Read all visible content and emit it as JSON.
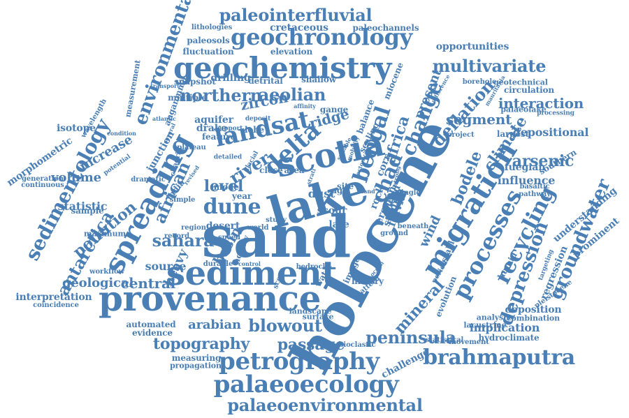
{
  "cloud": {
    "color": "#4a7fb5",
    "words": [
      "sand",
      "holocene",
      "lake",
      "provenance",
      "sediment",
      "scotia",
      "geochemistry",
      "spreading",
      "migration",
      "petrography",
      "palaeoecology",
      "delta",
      "landsat",
      "geochronology",
      "processes",
      "dune",
      "bengal",
      "recycling",
      "brahmaputra",
      "palaeoenvironmental",
      "sedimentology",
      "groundwater",
      "paleointerfluvial",
      "multivariate",
      "african",
      "northern",
      "aeolian",
      "topography",
      "blowout",
      "peninsula",
      "passage",
      "depression",
      "chad",
      "change",
      "deflation",
      "africa",
      "environmental",
      "segment",
      "interaction",
      "zircon",
      "antarctica",
      "river",
      "level",
      "sahara",
      "basin",
      "arabian",
      "mineral",
      "central",
      "pollution",
      "wind",
      "arsenic",
      "bodele",
      "climate",
      "ridge",
      "volume",
      "increase",
      "implication",
      "influence",
      "fluvial",
      "rock",
      "cretaceous",
      "paleochannels",
      "opportunities",
      "elevation",
      "fluctuation",
      "paleosols",
      "lithologies",
      "heavy",
      "source",
      "statistic",
      "morphometric",
      "isotope",
      "junction",
      "anganmma",
      "measurement",
      "fuegian",
      "depositional",
      "largest",
      "understanding",
      "prominent",
      "regression",
      "deposition",
      "geological",
      "interpretation",
      "coincidence",
      "workflow",
      "automated",
      "evidence",
      "measuring",
      "propagation",
      "challenge",
      "analysis",
      "lacustrine",
      "surface",
      "landscape",
      "bioclastic",
      "statistical",
      "movement",
      "hydroclimate",
      "combination",
      "mauritania",
      "circulation",
      "palaeolake",
      "geotechnical",
      "borehole",
      "difference",
      "miocene",
      "present",
      "stable",
      "period",
      "evolution",
      "humid",
      "targeting",
      "pleistocene",
      "southern",
      "processing",
      "project",
      "basaltic",
      "pathway",
      "drilling",
      "detrital",
      "shallow",
      "snapshot",
      "multiple",
      "aquifer",
      "drake",
      "feature",
      "gange",
      "lobe",
      "model",
      "year",
      "dust",
      "scour",
      "late",
      "desert",
      "india",
      "chadrill",
      "record",
      "region",
      "maximum",
      "sample",
      "generation",
      "continuous",
      "wavelength",
      "plateau",
      "support",
      "deposit",
      "affinity",
      "transport",
      "condition",
      "potential",
      "dramatic",
      "simple",
      "durable",
      "speed",
      "hollow",
      "control",
      "bedrock",
      "history",
      "pattern",
      "ocean",
      "beneath",
      "ground",
      "study",
      "world",
      "close",
      "area",
      "site",
      "age",
      "erosion",
      "flood",
      "corr",
      "studies",
      "single",
      "balance",
      "scaling",
      "mobility",
      "suitable",
      "several",
      "atlantic",
      "revised",
      "detailed",
      "glacial",
      "tectonic",
      "strong",
      "water",
      "scene",
      "image",
      "strati",
      "land"
    ]
  }
}
